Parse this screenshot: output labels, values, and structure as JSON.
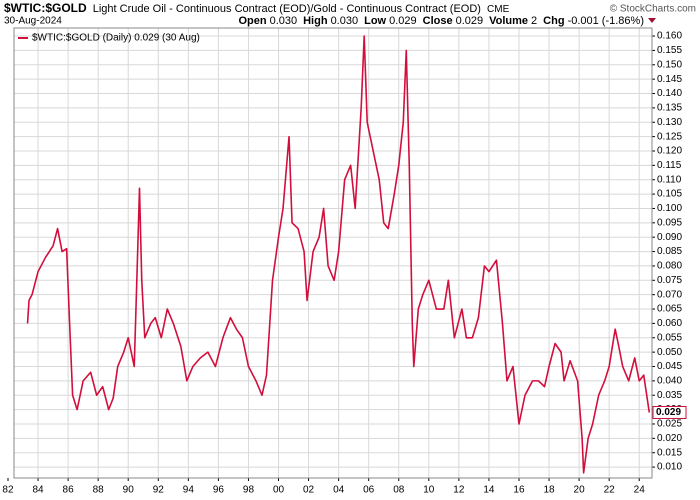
{
  "chart_data": {
    "type": "line",
    "title": "$WTIC:$GOLD",
    "subtitle": "Light Crude Oil - Continuous Contract (EOD)/Gold - Continuous Contract (EOD)",
    "exchange": "CME",
    "date": "30-Aug-2024",
    "copyright": "© StockCharts.com",
    "quote": [
      {
        "label": "Open",
        "value": "0.030"
      },
      {
        "label": "High",
        "value": "0.030"
      },
      {
        "label": "Low",
        "value": "0.029"
      },
      {
        "label": "Close",
        "value": "0.029"
      },
      {
        "label": "Volume",
        "value": "2"
      },
      {
        "label": "Chg",
        "value": "-0.001 (-1.86%)"
      }
    ],
    "x": [
      1983.3,
      1983.4,
      1983.6,
      1984.0,
      1984.5,
      1985.0,
      1985.3,
      1985.6,
      1985.9,
      1986.1,
      1986.3,
      1986.6,
      1987.0,
      1987.5,
      1987.9,
      1988.3,
      1988.7,
      1989.0,
      1989.3,
      1989.7,
      1990.0,
      1990.4,
      1990.6,
      1990.75,
      1990.9,
      1991.1,
      1991.5,
      1991.8,
      1992.2,
      1992.6,
      1993.0,
      1993.5,
      1993.9,
      1994.3,
      1994.8,
      1995.3,
      1995.8,
      1996.3,
      1996.8,
      1997.2,
      1997.6,
      1998.0,
      1998.5,
      1998.9,
      1999.2,
      1999.6,
      2000.0,
      2000.3,
      2000.7,
      2000.9,
      2001.3,
      2001.7,
      2001.9,
      2002.3,
      2002.7,
      2003.0,
      2003.3,
      2003.7,
      2004.0,
      2004.4,
      2004.8,
      2005.1,
      2005.5,
      2005.7,
      2005.9,
      2006.3,
      2006.7,
      2007.0,
      2007.3,
      2007.7,
      2008.0,
      2008.3,
      2008.5,
      2008.7,
      2008.9,
      2009.0,
      2009.3,
      2009.6,
      2010.0,
      2010.5,
      2011.0,
      2011.3,
      2011.7,
      2012.2,
      2012.5,
      2012.9,
      2013.3,
      2013.7,
      2014.0,
      2014.5,
      2014.9,
      2015.2,
      2015.6,
      2016.0,
      2016.4,
      2016.9,
      2017.3,
      2017.7,
      2018.0,
      2018.4,
      2018.8,
      2019.0,
      2019.4,
      2019.9,
      2020.2,
      2020.3,
      2020.6,
      2020.9,
      2021.3,
      2021.7,
      2022.0,
      2022.4,
      2022.6,
      2022.9,
      2023.3,
      2023.7,
      2024.0,
      2024.3,
      2024.67
    ],
    "series": [
      {
        "name": "$WTIC:$GOLD (Daily) 0.029 (30 Aug)",
        "color": "#d20f3c",
        "values": [
          0.06,
          0.068,
          0.07,
          0.078,
          0.083,
          0.087,
          0.093,
          0.085,
          0.086,
          0.06,
          0.035,
          0.03,
          0.04,
          0.043,
          0.035,
          0.038,
          0.03,
          0.034,
          0.045,
          0.05,
          0.055,
          0.045,
          0.08,
          0.107,
          0.075,
          0.055,
          0.06,
          0.062,
          0.055,
          0.065,
          0.06,
          0.052,
          0.04,
          0.045,
          0.048,
          0.05,
          0.045,
          0.055,
          0.062,
          0.058,
          0.055,
          0.045,
          0.04,
          0.035,
          0.042,
          0.075,
          0.09,
          0.1,
          0.125,
          0.095,
          0.093,
          0.085,
          0.068,
          0.085,
          0.09,
          0.1,
          0.08,
          0.075,
          0.085,
          0.11,
          0.115,
          0.1,
          0.135,
          0.16,
          0.13,
          0.12,
          0.11,
          0.095,
          0.093,
          0.105,
          0.115,
          0.13,
          0.155,
          0.115,
          0.06,
          0.045,
          0.065,
          0.07,
          0.075,
          0.065,
          0.065,
          0.075,
          0.055,
          0.065,
          0.055,
          0.055,
          0.062,
          0.08,
          0.078,
          0.082,
          0.06,
          0.04,
          0.045,
          0.025,
          0.035,
          0.04,
          0.04,
          0.038,
          0.045,
          0.053,
          0.05,
          0.04,
          0.047,
          0.04,
          0.02,
          0.008,
          0.02,
          0.025,
          0.035,
          0.04,
          0.045,
          0.058,
          0.053,
          0.045,
          0.04,
          0.048,
          0.04,
          0.042,
          0.029
        ]
      }
    ],
    "xlim": [
      1982.4,
      2024.85
    ],
    "xticks": [
      {
        "value": 1982,
        "label": "82"
      },
      {
        "value": 1984,
        "label": "84"
      },
      {
        "value": 1986,
        "label": "86"
      },
      {
        "value": 1988,
        "label": "88"
      },
      {
        "value": 1990,
        "label": "90"
      },
      {
        "value": 1992,
        "label": "92"
      },
      {
        "value": 1994,
        "label": "94"
      },
      {
        "value": 1996,
        "label": "96"
      },
      {
        "value": 1998,
        "label": "98"
      },
      {
        "value": 2000,
        "label": "00"
      },
      {
        "value": 2002,
        "label": "02"
      },
      {
        "value": 2004,
        "label": "04"
      },
      {
        "value": 2006,
        "label": "06"
      },
      {
        "value": 2008,
        "label": "08"
      },
      {
        "value": 2010,
        "label": "10"
      },
      {
        "value": 2012,
        "label": "12"
      },
      {
        "value": 2014,
        "label": "14"
      },
      {
        "value": 2016,
        "label": "16"
      },
      {
        "value": 2018,
        "label": "18"
      },
      {
        "value": 2020,
        "label": "20"
      },
      {
        "value": 2022,
        "label": "22"
      },
      {
        "value": 2024,
        "label": "24"
      }
    ],
    "ylim": [
      0.0062,
      0.1628
    ],
    "yticks": [
      {
        "value": 0.01,
        "label": "0.010"
      },
      {
        "value": 0.015,
        "label": "0.015"
      },
      {
        "value": 0.02,
        "label": "0.020"
      },
      {
        "value": 0.025,
        "label": "0.025"
      },
      {
        "value": 0.03,
        "label": "0.030"
      },
      {
        "value": 0.035,
        "label": "0.035"
      },
      {
        "value": 0.04,
        "label": "0.040"
      },
      {
        "value": 0.045,
        "label": "0.045"
      },
      {
        "value": 0.05,
        "label": "0.050"
      },
      {
        "value": 0.055,
        "label": "0.055"
      },
      {
        "value": 0.06,
        "label": "0.060"
      },
      {
        "value": 0.065,
        "label": "0.065"
      },
      {
        "value": 0.07,
        "label": "0.070"
      },
      {
        "value": 0.075,
        "label": "0.075"
      },
      {
        "value": 0.08,
        "label": "0.080"
      },
      {
        "value": 0.085,
        "label": "0.085"
      },
      {
        "value": 0.09,
        "label": "0.090"
      },
      {
        "value": 0.095,
        "label": "0.095"
      },
      {
        "value": 0.1,
        "label": "0.100"
      },
      {
        "value": 0.105,
        "label": "0.105"
      },
      {
        "value": 0.11,
        "label": "0.110"
      },
      {
        "value": 0.115,
        "label": "0.115"
      },
      {
        "value": 0.12,
        "label": "0.120"
      },
      {
        "value": 0.125,
        "label": "0.125"
      },
      {
        "value": 0.13,
        "label": "0.130"
      },
      {
        "value": 0.135,
        "label": "0.135"
      },
      {
        "value": 0.14,
        "label": "0.140"
      },
      {
        "value": 0.145,
        "label": "0.145"
      },
      {
        "value": 0.15,
        "label": "0.150"
      },
      {
        "value": 0.155,
        "label": "0.155"
      },
      {
        "value": 0.16,
        "label": "0.160"
      }
    ],
    "grid": true
  }
}
